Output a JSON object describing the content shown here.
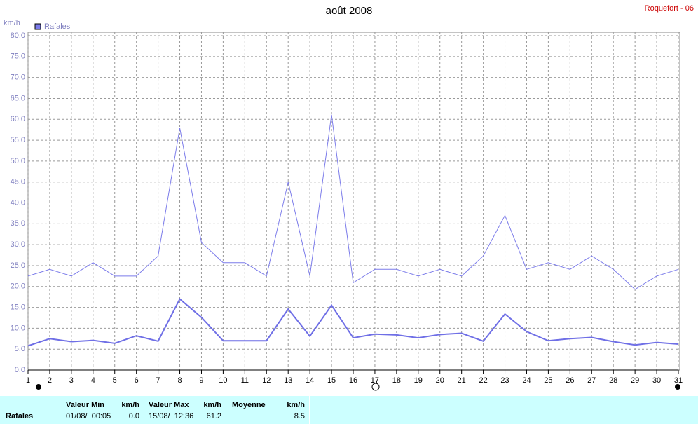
{
  "chart_data": {
    "type": "line",
    "title": "août 2008",
    "station": "Roquefort - 06",
    "y_unit": "km/h",
    "categories": [
      "1",
      "2",
      "3",
      "4",
      "5",
      "6",
      "7",
      "8",
      "9",
      "10",
      "11",
      "12",
      "13",
      "14",
      "15",
      "16",
      "17",
      "18",
      "19",
      "20",
      "21",
      "22",
      "23",
      "24",
      "25",
      "26",
      "27",
      "28",
      "29",
      "30",
      "31"
    ],
    "series": [
      {
        "name": "Rafales",
        "color": "#7b7bea",
        "width": 1,
        "values": [
          22.5,
          24.1,
          22.5,
          25.7,
          22.5,
          22.5,
          27.3,
          57.9,
          30.5,
          25.7,
          25.7,
          22.5,
          45.0,
          22.5,
          61.1,
          20.9,
          24.1,
          24.1,
          22.5,
          24.1,
          22.5,
          27.3,
          37.0,
          24.1,
          25.7,
          24.1,
          27.3,
          24.1,
          19.3,
          22.5,
          24.1
        ]
      },
      {
        "color": "#6f6fe6",
        "width": 2,
        "values": [
          5.8,
          7.5,
          6.8,
          7.1,
          6.4,
          8.2,
          6.9,
          17.0,
          12.6,
          7.0,
          7.0,
          7.0,
          14.6,
          8.1,
          15.5,
          7.7,
          8.6,
          8.4,
          7.7,
          8.5,
          8.8,
          6.9,
          13.4,
          9.2,
          7.0,
          7.5,
          7.8,
          6.8,
          6.0,
          6.6,
          6.2
        ]
      }
    ],
    "ylim": [
      0,
      80
    ],
    "yticks": [
      {
        "value": 0,
        "label": "0.0"
      },
      {
        "value": 5,
        "label": "5.0"
      },
      {
        "value": 10,
        "label": "10.0"
      },
      {
        "value": 15,
        "label": "15.0"
      },
      {
        "value": 20,
        "label": "20.0"
      },
      {
        "value": 25,
        "label": "25.0"
      },
      {
        "value": 30,
        "label": "30.0"
      },
      {
        "value": 35,
        "label": "35.0"
      },
      {
        "value": 40,
        "label": "40.0"
      },
      {
        "value": 45,
        "label": "45.0"
      },
      {
        "value": 50,
        "label": "50.0"
      },
      {
        "value": 55,
        "label": "55.0"
      },
      {
        "value": 60,
        "label": "60.0"
      },
      {
        "value": 65,
        "label": "65.0"
      },
      {
        "value": 70,
        "label": "70.0"
      },
      {
        "value": 75,
        "label": "75.0"
      },
      {
        "value": 80,
        "label": "80.0"
      }
    ],
    "grid": true
  },
  "summary": {
    "label": "Rafales",
    "min": {
      "header": "Valeur Min",
      "unit": "km/h",
      "date": "01/08/  00:05",
      "value": "0.0"
    },
    "max": {
      "header": "Valeur Max",
      "unit": "km/h",
      "date": "15/08/  12:36",
      "value": "61.2"
    },
    "mean": {
      "header": "Moyenne",
      "unit": "km/h",
      "value": "8.5"
    }
  }
}
